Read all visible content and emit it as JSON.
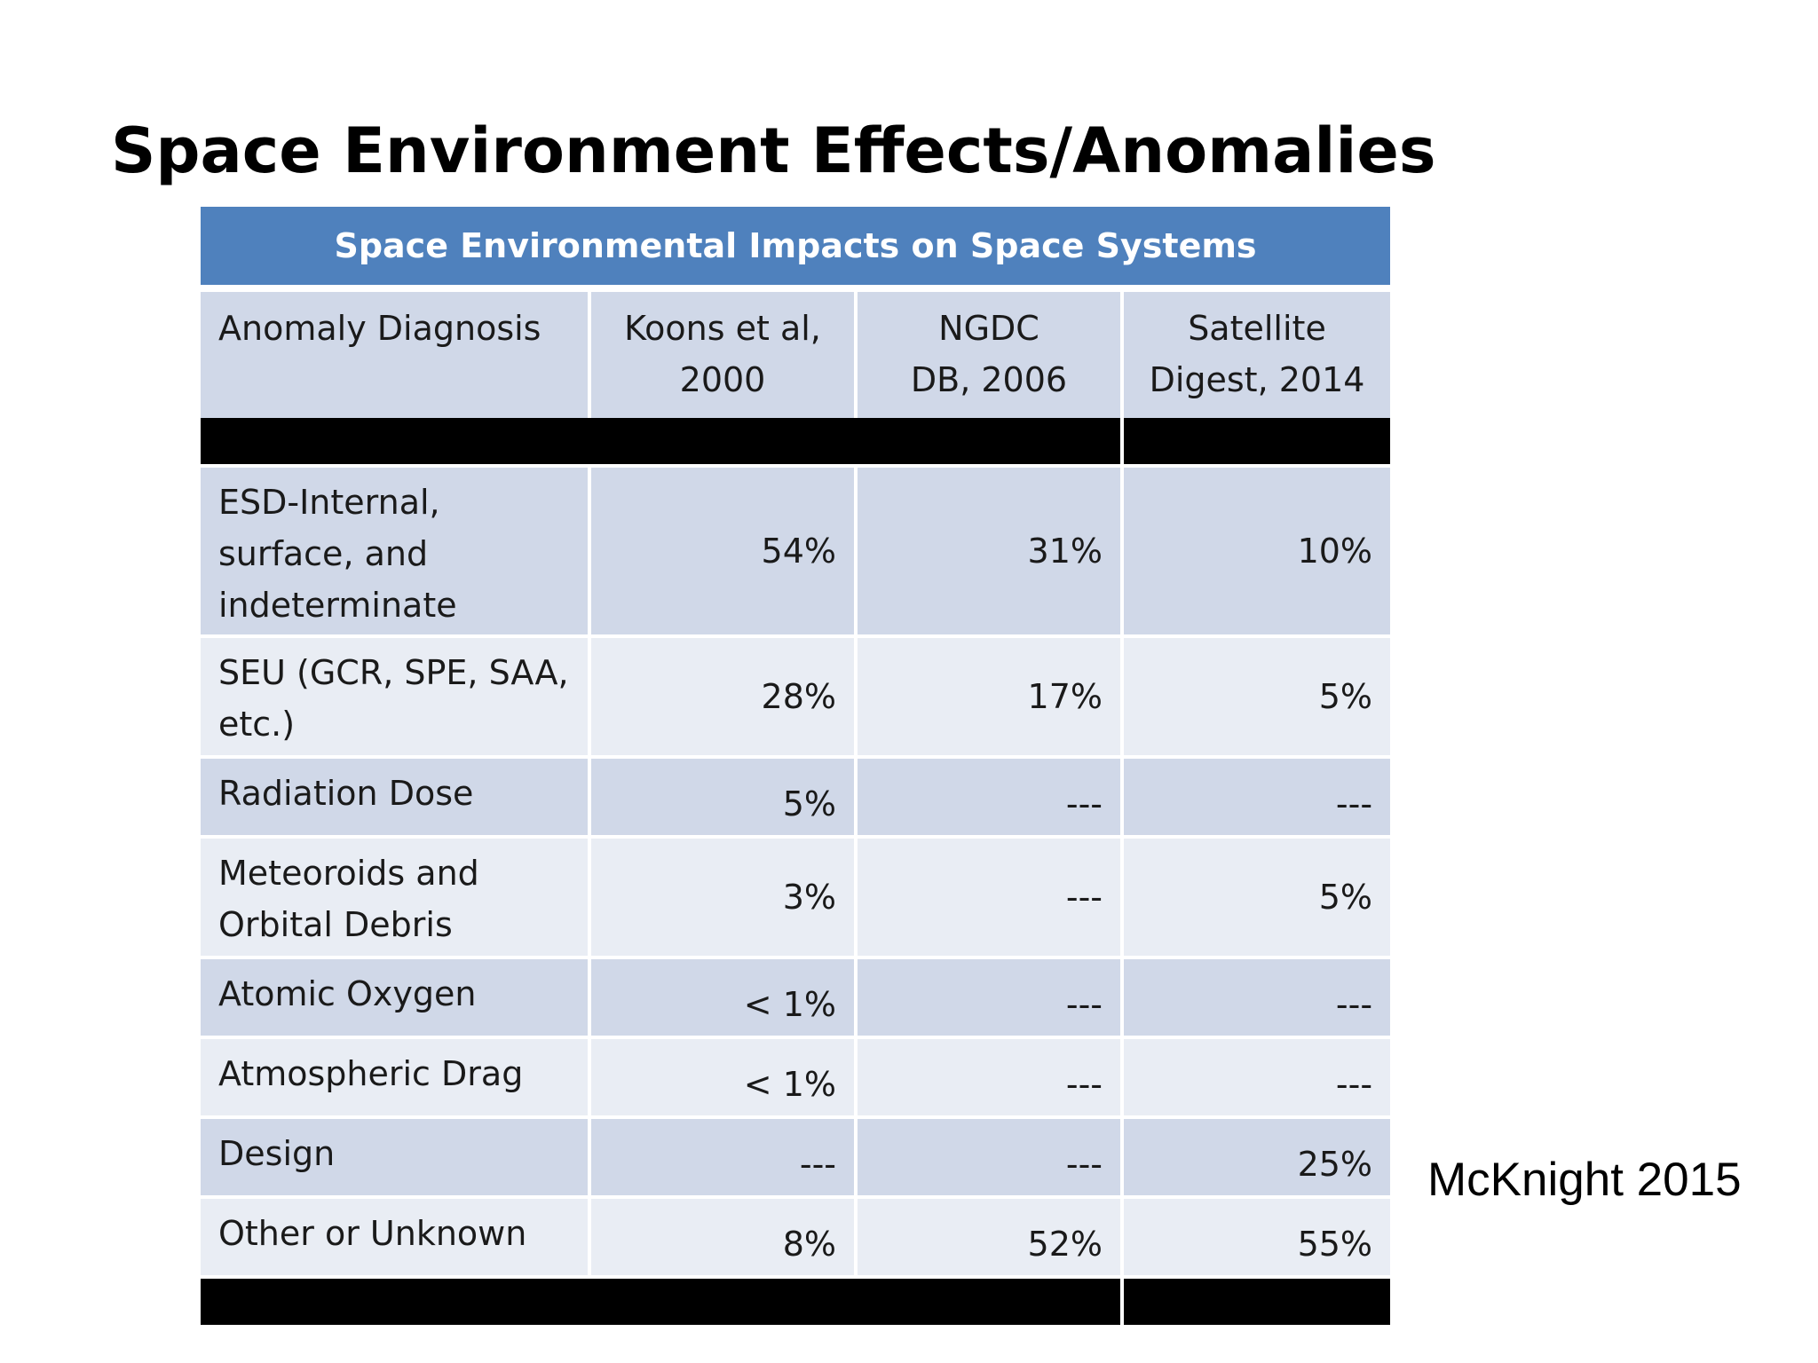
{
  "slide": {
    "title": "Space Environment Effects/Anomalies",
    "citation": "McKnight 2015"
  },
  "table": {
    "caption": "Space Environmental Impacts on Space Systems",
    "headers": [
      {
        "line1": "Anomaly Diagnosis",
        "line2": ""
      },
      {
        "line1": "Koons et al,",
        "line2": "2000"
      },
      {
        "line1": "NGDC",
        "line2": "DB, 2006"
      },
      {
        "line1": "Satellite",
        "line2": "Digest, 2014"
      }
    ],
    "rows": [
      {
        "label_lines": [
          "ESD-Internal,",
          "surface, and",
          "indeterminate"
        ],
        "koons": "54%",
        "ngdc": "31%",
        "digest": "10%"
      },
      {
        "label_lines": [
          "SEU (GCR, SPE, SAA,",
          "etc.)"
        ],
        "koons": "28%",
        "ngdc": "17%",
        "digest": "5%"
      },
      {
        "label_lines": [
          "Radiation Dose"
        ],
        "koons": "5%",
        "ngdc": "---",
        "digest": "---"
      },
      {
        "label_lines": [
          "Meteoroids and",
          "Orbital Debris"
        ],
        "koons": "3%",
        "ngdc": "---",
        "digest": "5%"
      },
      {
        "label_lines": [
          "Atomic Oxygen"
        ],
        "koons": "< 1%",
        "ngdc": "---",
        "digest": "---"
      },
      {
        "label_lines": [
          "Atmospheric Drag"
        ],
        "koons": "< 1%",
        "ngdc": "---",
        "digest": "---"
      },
      {
        "label_lines": [
          "Design"
        ],
        "koons": "---",
        "ngdc": "---",
        "digest": "25%"
      },
      {
        "label_lines": [
          "Other or Unknown"
        ],
        "koons": "8%",
        "ngdc": "52%",
        "digest": "55%"
      }
    ]
  },
  "colors": {
    "caption_bg": "#4f81bd",
    "row_dark": "#d0d8e8",
    "row_light": "#e9edf4",
    "separator": "#000000"
  }
}
